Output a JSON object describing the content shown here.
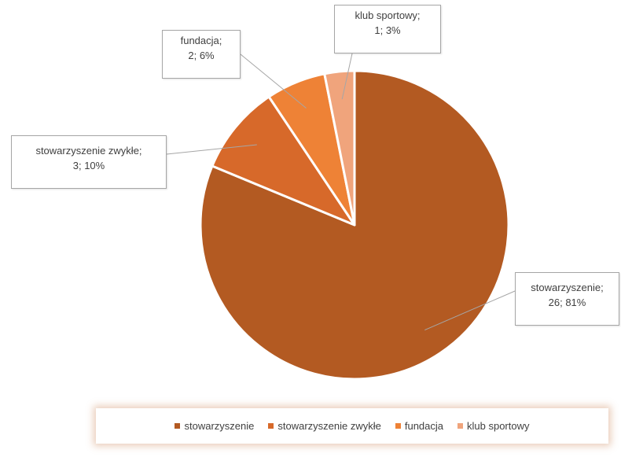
{
  "chart_data": {
    "type": "pie",
    "title": "",
    "categories": [
      "stowarzyszenie",
      "stowarzyszenie zwykłe",
      "fundacja",
      "klub sportowy"
    ],
    "values": [
      26,
      3,
      2,
      1
    ],
    "percentages": [
      "81%",
      "10%",
      "6%",
      "3%"
    ],
    "colors": [
      "#b35a22",
      "#d7692a",
      "#ee8236",
      "#f0a47c"
    ],
    "data_labels": [
      {
        "name": "stowarzyszenie;",
        "value": "26; 81%"
      },
      {
        "name": "stowarzyszenie zwykłe;",
        "value": "3; 10%"
      },
      {
        "name": "fundacja;",
        "value": "2; 6%"
      },
      {
        "name": "klub sportowy;",
        "value": "1; 3%"
      }
    ],
    "legend_position": "bottom"
  },
  "legend": {
    "items": [
      {
        "label": "stowarzyszenie",
        "color": "#b35a22"
      },
      {
        "label": "stowarzyszenie zwykłe",
        "color": "#d7692a"
      },
      {
        "label": "fundacja",
        "color": "#ee8236"
      },
      {
        "label": "klub sportowy",
        "color": "#f0a47c"
      }
    ]
  }
}
